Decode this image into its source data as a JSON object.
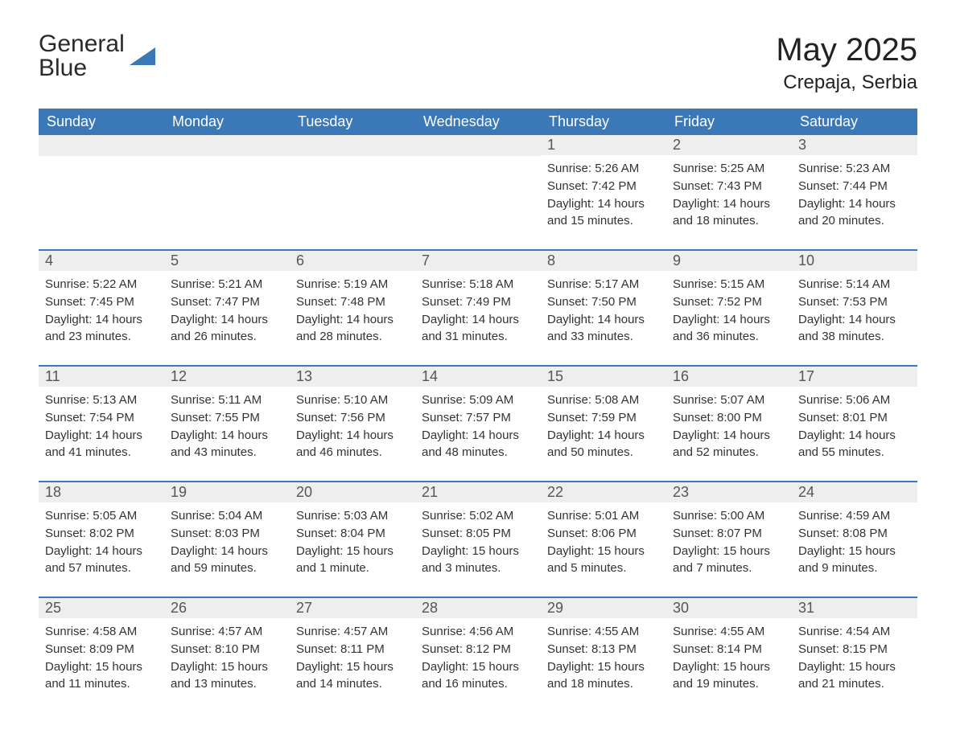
{
  "logo": {
    "text_top": "General",
    "text_bottom": "Blue"
  },
  "title": "May 2025",
  "location": "Crepaja, Serbia",
  "colors": {
    "header_bg": "#3b78b8",
    "header_text": "#ffffff",
    "daynum_bg": "#eeeeee",
    "daynum_text": "#555555",
    "body_text": "#333333",
    "page_bg": "#ffffff",
    "divider": "#3b78b8"
  },
  "headers": [
    "Sunday",
    "Monday",
    "Tuesday",
    "Wednesday",
    "Thursday",
    "Friday",
    "Saturday"
  ],
  "weeks": [
    [
      {
        "empty": true
      },
      {
        "empty": true
      },
      {
        "empty": true
      },
      {
        "empty": true
      },
      {
        "day": "1",
        "sunrise": "5:26 AM",
        "sunset": "7:42 PM",
        "daylight": "14 hours and 15 minutes."
      },
      {
        "day": "2",
        "sunrise": "5:25 AM",
        "sunset": "7:43 PM",
        "daylight": "14 hours and 18 minutes."
      },
      {
        "day": "3",
        "sunrise": "5:23 AM",
        "sunset": "7:44 PM",
        "daylight": "14 hours and 20 minutes."
      }
    ],
    [
      {
        "day": "4",
        "sunrise": "5:22 AM",
        "sunset": "7:45 PM",
        "daylight": "14 hours and 23 minutes."
      },
      {
        "day": "5",
        "sunrise": "5:21 AM",
        "sunset": "7:47 PM",
        "daylight": "14 hours and 26 minutes."
      },
      {
        "day": "6",
        "sunrise": "5:19 AM",
        "sunset": "7:48 PM",
        "daylight": "14 hours and 28 minutes."
      },
      {
        "day": "7",
        "sunrise": "5:18 AM",
        "sunset": "7:49 PM",
        "daylight": "14 hours and 31 minutes."
      },
      {
        "day": "8",
        "sunrise": "5:17 AM",
        "sunset": "7:50 PM",
        "daylight": "14 hours and 33 minutes."
      },
      {
        "day": "9",
        "sunrise": "5:15 AM",
        "sunset": "7:52 PM",
        "daylight": "14 hours and 36 minutes."
      },
      {
        "day": "10",
        "sunrise": "5:14 AM",
        "sunset": "7:53 PM",
        "daylight": "14 hours and 38 minutes."
      }
    ],
    [
      {
        "day": "11",
        "sunrise": "5:13 AM",
        "sunset": "7:54 PM",
        "daylight": "14 hours and 41 minutes."
      },
      {
        "day": "12",
        "sunrise": "5:11 AM",
        "sunset": "7:55 PM",
        "daylight": "14 hours and 43 minutes."
      },
      {
        "day": "13",
        "sunrise": "5:10 AM",
        "sunset": "7:56 PM",
        "daylight": "14 hours and 46 minutes."
      },
      {
        "day": "14",
        "sunrise": "5:09 AM",
        "sunset": "7:57 PM",
        "daylight": "14 hours and 48 minutes."
      },
      {
        "day": "15",
        "sunrise": "5:08 AM",
        "sunset": "7:59 PM",
        "daylight": "14 hours and 50 minutes."
      },
      {
        "day": "16",
        "sunrise": "5:07 AM",
        "sunset": "8:00 PM",
        "daylight": "14 hours and 52 minutes."
      },
      {
        "day": "17",
        "sunrise": "5:06 AM",
        "sunset": "8:01 PM",
        "daylight": "14 hours and 55 minutes."
      }
    ],
    [
      {
        "day": "18",
        "sunrise": "5:05 AM",
        "sunset": "8:02 PM",
        "daylight": "14 hours and 57 minutes."
      },
      {
        "day": "19",
        "sunrise": "5:04 AM",
        "sunset": "8:03 PM",
        "daylight": "14 hours and 59 minutes."
      },
      {
        "day": "20",
        "sunrise": "5:03 AM",
        "sunset": "8:04 PM",
        "daylight": "15 hours and 1 minute."
      },
      {
        "day": "21",
        "sunrise": "5:02 AM",
        "sunset": "8:05 PM",
        "daylight": "15 hours and 3 minutes."
      },
      {
        "day": "22",
        "sunrise": "5:01 AM",
        "sunset": "8:06 PM",
        "daylight": "15 hours and 5 minutes."
      },
      {
        "day": "23",
        "sunrise": "5:00 AM",
        "sunset": "8:07 PM",
        "daylight": "15 hours and 7 minutes."
      },
      {
        "day": "24",
        "sunrise": "4:59 AM",
        "sunset": "8:08 PM",
        "daylight": "15 hours and 9 minutes."
      }
    ],
    [
      {
        "day": "25",
        "sunrise": "4:58 AM",
        "sunset": "8:09 PM",
        "daylight": "15 hours and 11 minutes."
      },
      {
        "day": "26",
        "sunrise": "4:57 AM",
        "sunset": "8:10 PM",
        "daylight": "15 hours and 13 minutes."
      },
      {
        "day": "27",
        "sunrise": "4:57 AM",
        "sunset": "8:11 PM",
        "daylight": "15 hours and 14 minutes."
      },
      {
        "day": "28",
        "sunrise": "4:56 AM",
        "sunset": "8:12 PM",
        "daylight": "15 hours and 16 minutes."
      },
      {
        "day": "29",
        "sunrise": "4:55 AM",
        "sunset": "8:13 PM",
        "daylight": "15 hours and 18 minutes."
      },
      {
        "day": "30",
        "sunrise": "4:55 AM",
        "sunset": "8:14 PM",
        "daylight": "15 hours and 19 minutes."
      },
      {
        "day": "31",
        "sunrise": "4:54 AM",
        "sunset": "8:15 PM",
        "daylight": "15 hours and 21 minutes."
      }
    ]
  ],
  "labels": {
    "sunrise": "Sunrise:",
    "sunset": "Sunset:",
    "daylight": "Daylight:"
  }
}
